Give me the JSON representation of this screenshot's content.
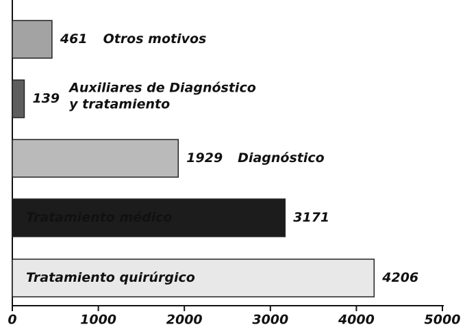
{
  "chart_data": {
    "type": "hbar",
    "categories": [
      "Otros motivos",
      "Auxiliares de Diagnóstico\ny tratamiento",
      "Diagnóstico",
      "Tratamiento médico",
      "Tratamiento quirúrgico"
    ],
    "values": [
      461,
      139,
      1929,
      3171,
      4206
    ],
    "colors": [
      "#a3a3a3",
      "#5e5e5e",
      "#bababa",
      "#1c1c1c",
      "#e8e8e8"
    ],
    "xlim": [
      0,
      5000
    ],
    "xticks": [
      0,
      1000,
      2000,
      3000,
      4000,
      5000
    ]
  }
}
